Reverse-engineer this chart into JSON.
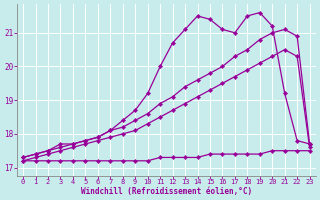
{
  "xlabel": "Windchill (Refroidissement éolien,°C)",
  "ylabel": "",
  "bg_color": "#c8ecec",
  "line_color": "#990099",
  "grid_color": "#ffffff",
  "xlim": [
    -0.5,
    23.5
  ],
  "ylim": [
    16.75,
    21.85
  ],
  "yticks": [
    17,
    18,
    19,
    20,
    21
  ],
  "xticks": [
    0,
    1,
    2,
    3,
    4,
    5,
    6,
    7,
    8,
    9,
    10,
    11,
    12,
    13,
    14,
    15,
    16,
    17,
    18,
    19,
    20,
    21,
    22,
    23
  ],
  "lines": [
    {
      "x": [
        0,
        1,
        2,
        3,
        4,
        5,
        6,
        7,
        8,
        9,
        10,
        11,
        12,
        13,
        14,
        15,
        16,
        17,
        18,
        19,
        20,
        21,
        22,
        23
      ],
      "y": [
        17.2,
        17.2,
        17.2,
        17.2,
        17.2,
        17.2,
        17.2,
        17.2,
        17.2,
        17.2,
        17.2,
        17.3,
        17.3,
        17.3,
        17.3,
        17.4,
        17.4,
        17.4,
        17.4,
        17.4,
        17.5,
        17.5,
        17.5,
        17.5
      ]
    },
    {
      "x": [
        0,
        1,
        2,
        3,
        4,
        5,
        6,
        7,
        8,
        9,
        10,
        11,
        12,
        13,
        14,
        15,
        16,
        17,
        18,
        19,
        20,
        21,
        22,
        23
      ],
      "y": [
        17.2,
        17.3,
        17.4,
        17.5,
        17.6,
        17.7,
        17.8,
        17.9,
        18.0,
        18.1,
        18.3,
        18.5,
        18.7,
        18.9,
        19.1,
        19.3,
        19.5,
        19.7,
        19.9,
        20.1,
        20.3,
        20.5,
        20.3,
        17.6
      ]
    },
    {
      "x": [
        0,
        1,
        2,
        3,
        4,
        5,
        6,
        7,
        8,
        9,
        10,
        11,
        12,
        13,
        14,
        15,
        16,
        17,
        18,
        19,
        20,
        21,
        22,
        23
      ],
      "y": [
        17.3,
        17.4,
        17.5,
        17.6,
        17.7,
        17.8,
        17.9,
        18.1,
        18.2,
        18.4,
        18.6,
        18.9,
        19.1,
        19.4,
        19.6,
        19.8,
        20.0,
        20.3,
        20.5,
        20.8,
        21.0,
        21.1,
        20.9,
        17.7
      ]
    },
    {
      "x": [
        0,
        1,
        2,
        3,
        4,
        5,
        6,
        7,
        8,
        9,
        10,
        11,
        12,
        13,
        14,
        15,
        16,
        17,
        18,
        19,
        20,
        21,
        22,
        23
      ],
      "y": [
        17.3,
        17.4,
        17.5,
        17.7,
        17.7,
        17.8,
        17.9,
        18.1,
        18.4,
        18.7,
        19.2,
        20.0,
        20.7,
        21.1,
        21.5,
        21.4,
        21.1,
        21.0,
        21.5,
        21.6,
        21.2,
        19.2,
        17.8,
        17.7
      ]
    }
  ]
}
